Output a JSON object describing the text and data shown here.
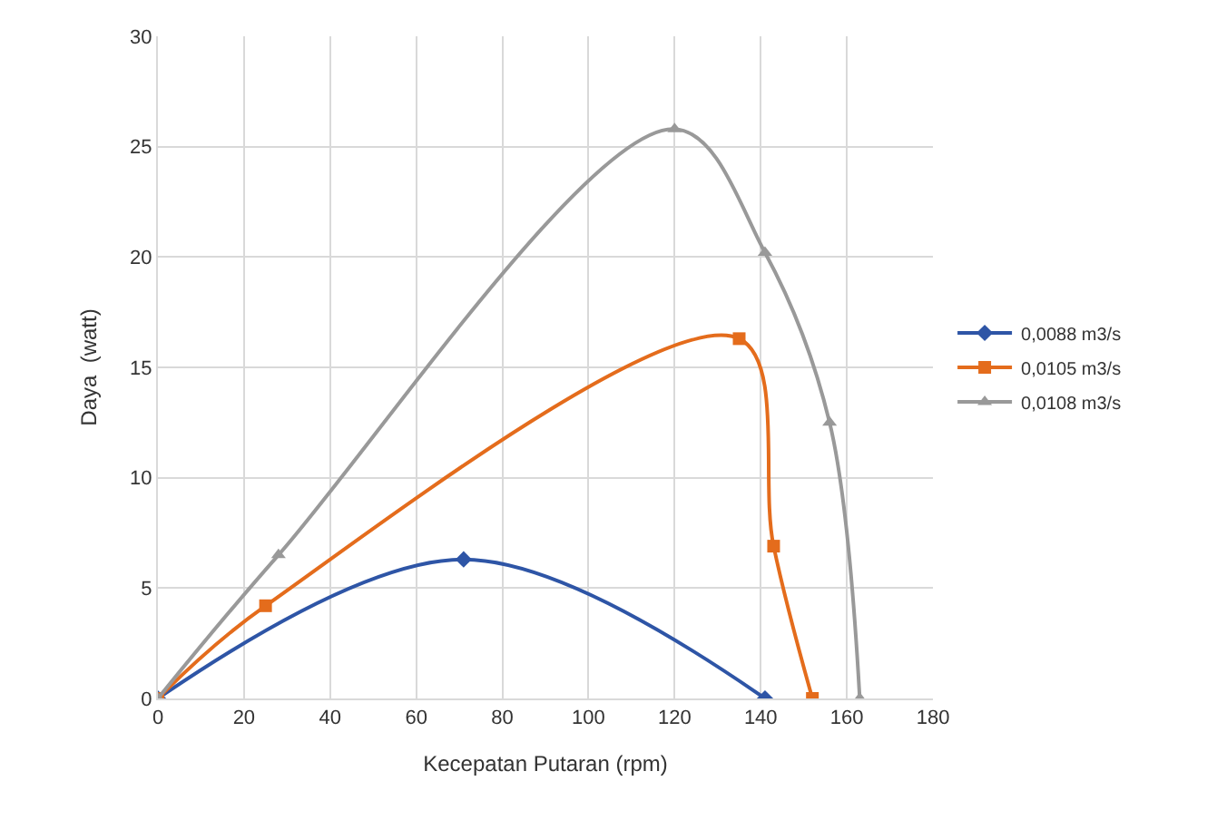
{
  "chart_data": {
    "type": "line",
    "xlabel": "Kecepatan Putaran (rpm)",
    "ylabel": "Daya  (watt)",
    "xlim": [
      0,
      180
    ],
    "xticks": [
      0,
      20,
      40,
      60,
      80,
      100,
      120,
      140,
      160,
      180
    ],
    "ylim": [
      0,
      30
    ],
    "yticks": [
      0,
      5,
      10,
      15,
      20,
      25,
      30
    ],
    "grid": true,
    "legend": "right",
    "line_style": "solid",
    "series": [
      {
        "name": "0,0088 m3/s",
        "color": "#2e55a6",
        "marker": "diamond",
        "x": [
          0,
          71,
          141
        ],
        "values": [
          0,
          6.3,
          0
        ]
      },
      {
        "name": "0,0105 m3/s",
        "color": "#e46c1c",
        "marker": "square",
        "x": [
          0,
          25,
          135,
          143,
          152
        ],
        "values": [
          0,
          4.2,
          16.3,
          6.9,
          0
        ]
      },
      {
        "name": "0,0108 m3/s",
        "color": "#999999",
        "marker": "triangle",
        "x": [
          0,
          28,
          120,
          141,
          156,
          163
        ],
        "values": [
          0,
          6.5,
          25.8,
          20.2,
          12.5,
          0
        ]
      }
    ]
  }
}
